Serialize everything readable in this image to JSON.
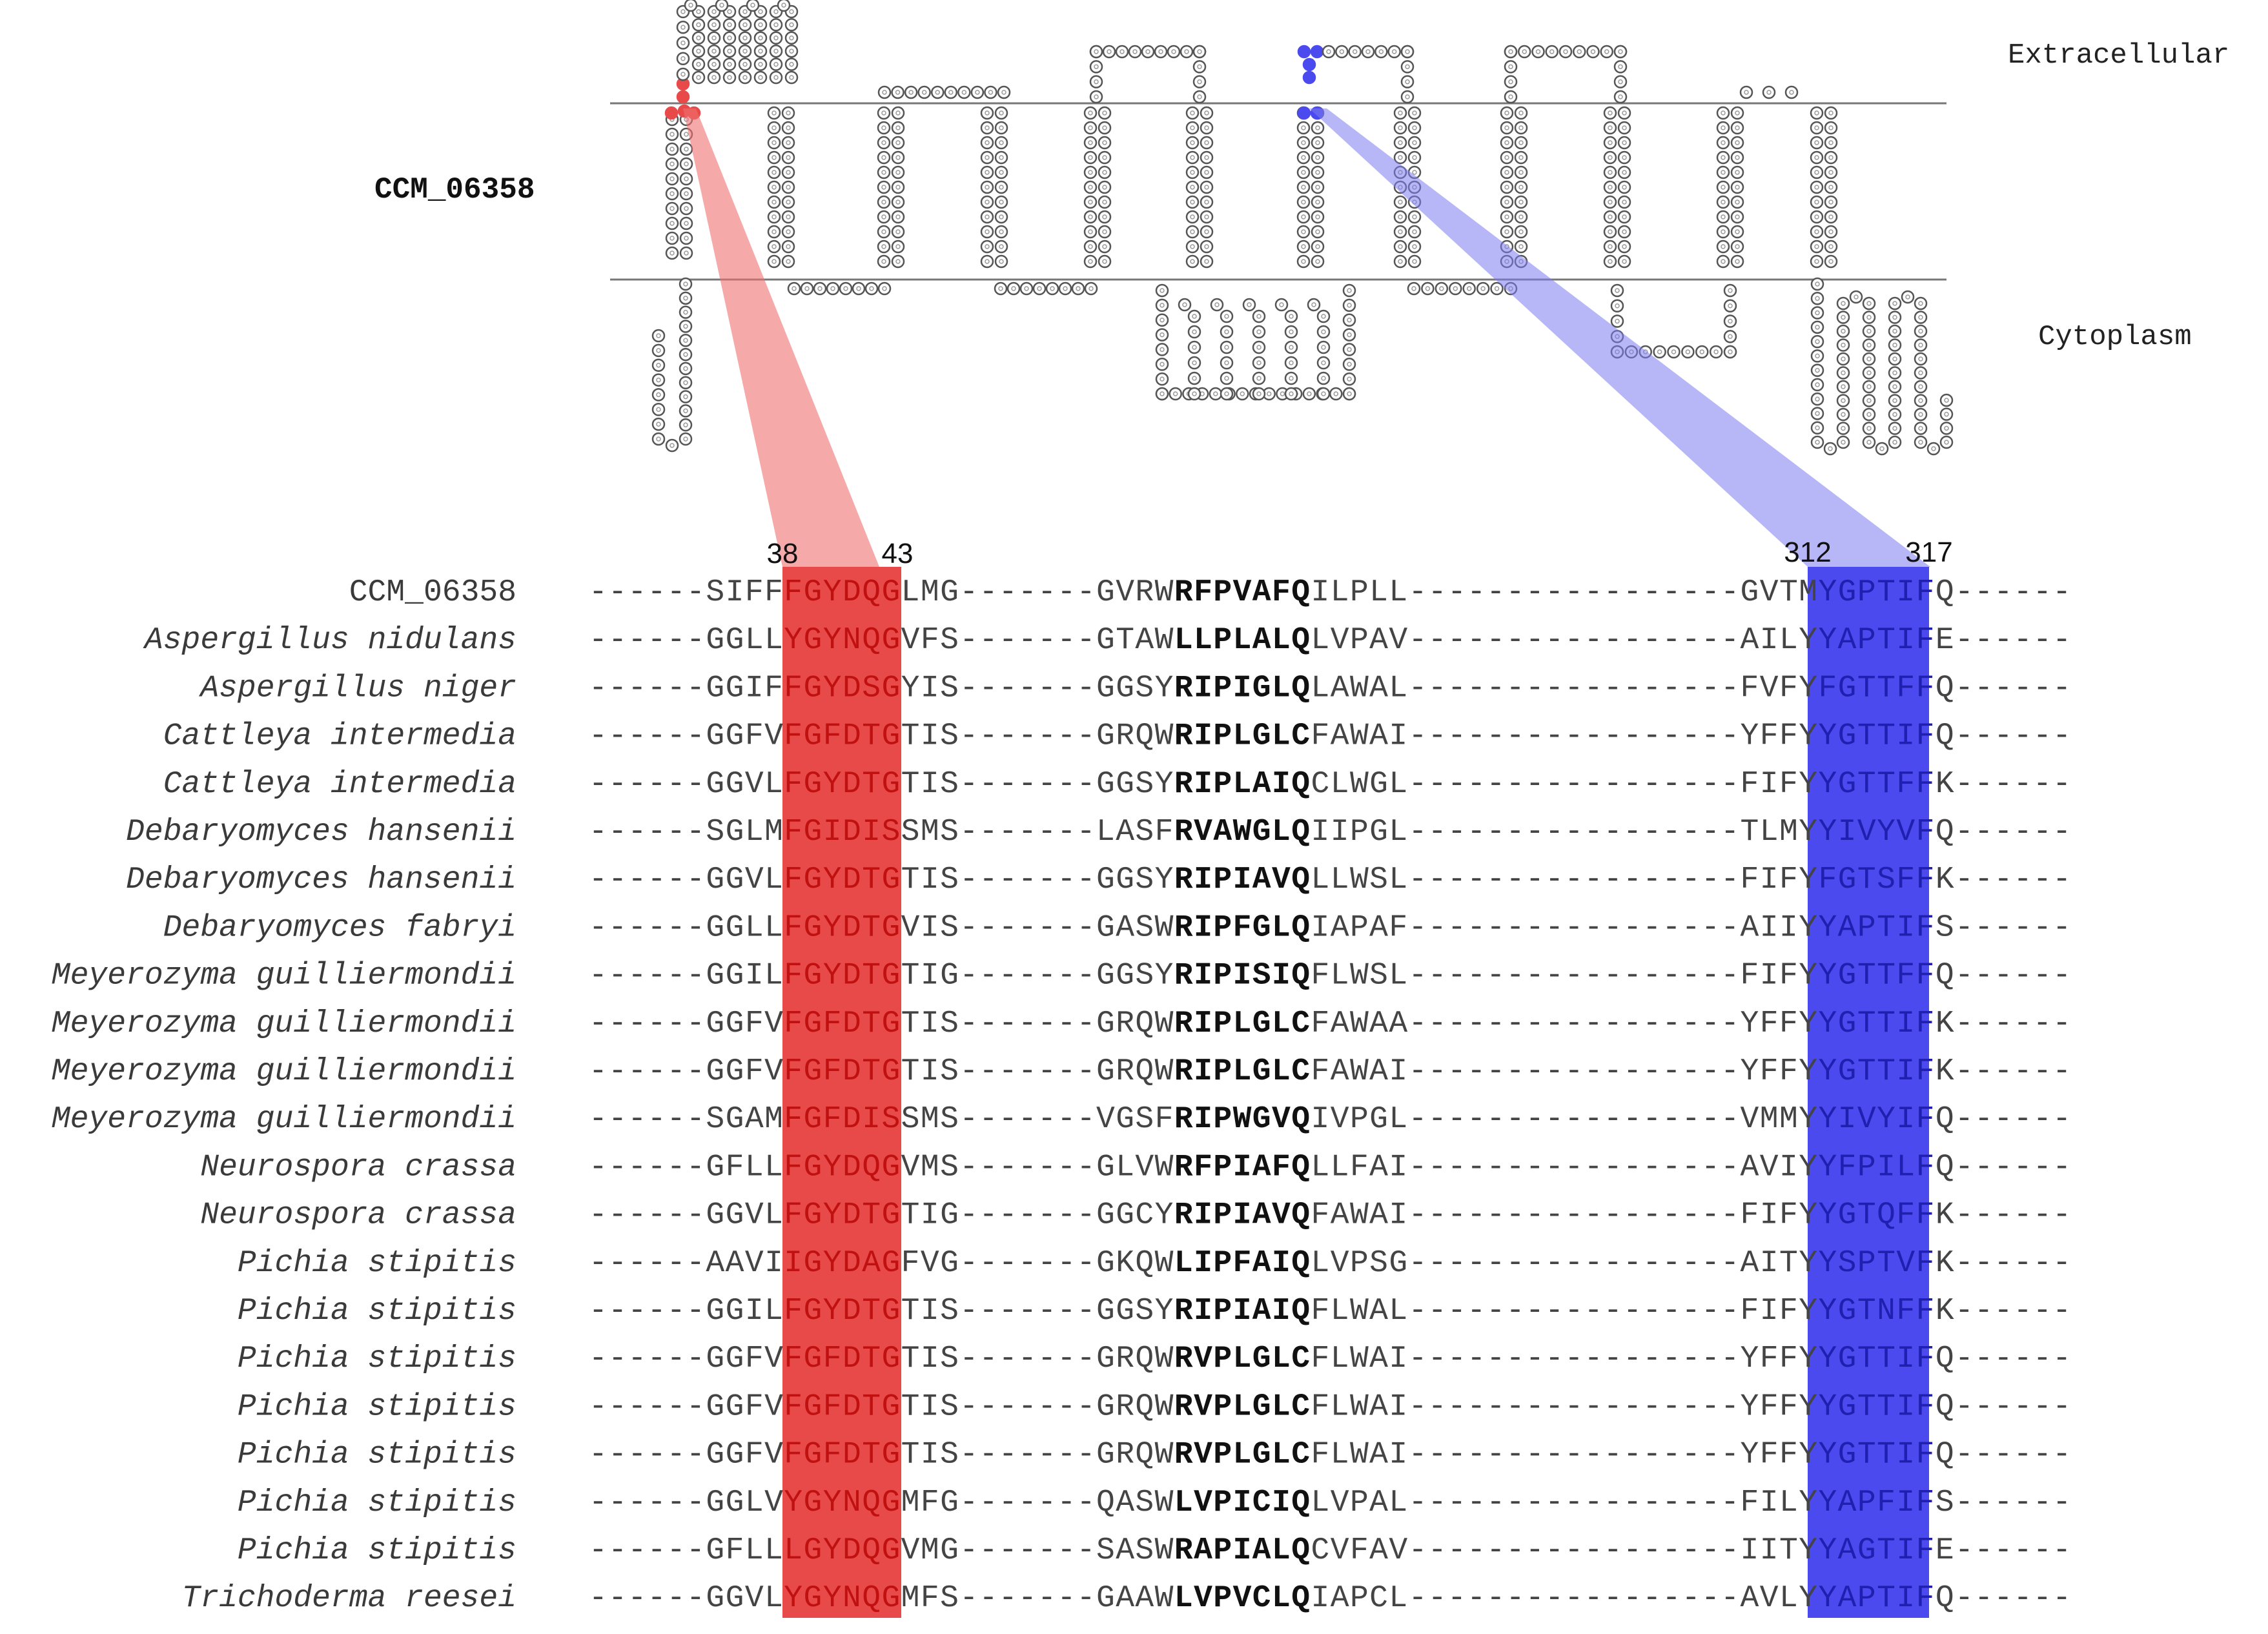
{
  "topology": {
    "protein_label": "CCM_06358",
    "extracellular_label": "Extracellular",
    "cytoplasm_label": "Cytoplasm",
    "colors": {
      "highlight_red": "#e84a4a",
      "highlight_blue": "#4a4aee",
      "membrane": "#777777"
    }
  },
  "positions": {
    "red_start": "38",
    "red_end": "43",
    "blue_start": "312",
    "blue_end": "317"
  },
  "alignment": {
    "rows": [
      {
        "name": "CCM_06358",
        "italic": false,
        "pre": "------SIFF",
        "m1": "FGYDQG",
        "mid1": "LMG-------GVRW",
        "bold": "RFPVAFQ",
        "mid2": "ILPLL-----------------GVTM",
        "m2": "YGPTIF",
        "post": "Q------"
      },
      {
        "name": "Aspergillus nidulans",
        "italic": true,
        "pre": "------GGLL",
        "m1": "YGYNQG",
        "mid1": "VFS-------GTAW",
        "bold": "LLPLALQ",
        "mid2": "LVPAV-----------------AILY",
        "m2": "YAPTIF",
        "post": "E------"
      },
      {
        "name": "Aspergillus niger",
        "italic": true,
        "pre": "------GGIF",
        "m1": "FGYDSG",
        "mid1": "YIS-------GGSY",
        "bold": "RIPIGLQ",
        "mid2": "LAWAL-----------------FVFY",
        "m2": "FGTTFF",
        "post": "Q------"
      },
      {
        "name": "Cattleya intermedia",
        "italic": true,
        "pre": "------GGFV",
        "m1": "FGFDTG",
        "mid1": "TIS-------GRQW",
        "bold": "RIPLGLC",
        "mid2": "FAWAI-----------------YFFY",
        "m2": "YGTTIF",
        "post": "Q------"
      },
      {
        "name": "Cattleya intermedia",
        "italic": true,
        "pre": "------GGVL",
        "m1": "FGYDTG",
        "mid1": "TIS-------GGSY",
        "bold": "RIPLAIQ",
        "mid2": "CLWGL-----------------FIFY",
        "m2": "YGTTFF",
        "post": "K------"
      },
      {
        "name": "Debaryomyces hansenii",
        "italic": true,
        "pre": "------SGLM",
        "m1": "FGIDIS",
        "mid1": "SMS-------LASF",
        "bold": "RVAWGLQ",
        "mid2": "IIPGL-----------------TLMY",
        "m2": "YIVYVF",
        "post": "Q------"
      },
      {
        "name": "Debaryomyces hansenii",
        "italic": true,
        "pre": "------GGVL",
        "m1": "FGYDTG",
        "mid1": "TIS-------GGSY",
        "bold": "RIPIAVQ",
        "mid2": "LLWSL-----------------FIFY",
        "m2": "FGTSFF",
        "post": "K------"
      },
      {
        "name": "Debaryomyces fabryi",
        "italic": true,
        "pre": "------GGLL",
        "m1": "FGYDTG",
        "mid1": "VIS-------GASW",
        "bold": "RIPFGLQ",
        "mid2": "IAPAF-----------------AIIY",
        "m2": "YAPTIF",
        "post": "S------"
      },
      {
        "name": "Meyerozyma guilliermondii",
        "italic": true,
        "pre": "------GGIL",
        "m1": "FGYDTG",
        "mid1": "TIG-------GGSY",
        "bold": "RIPISIQ",
        "mid2": "FLWSL-----------------FIFY",
        "m2": "YGTTFF",
        "post": "Q------"
      },
      {
        "name": "Meyerozyma guilliermondii",
        "italic": true,
        "pre": "------GGFV",
        "m1": "FGFDTG",
        "mid1": "TIS-------GRQW",
        "bold": "RIPLGLC",
        "mid2": "FAWAA-----------------YFFY",
        "m2": "YGTTIF",
        "post": "K------"
      },
      {
        "name": "Meyerozyma guilliermondii",
        "italic": true,
        "pre": "------GGFV",
        "m1": "FGFDTG",
        "mid1": "TIS-------GRQW",
        "bold": "RIPLGLC",
        "mid2": "FAWAI-----------------YFFY",
        "m2": "YGTTIF",
        "post": "K------"
      },
      {
        "name": "Meyerozyma guilliermondii",
        "italic": true,
        "pre": "------SGAM",
        "m1": "FGFDIS",
        "mid1": "SMS-------VGSF",
        "bold": "RIPWGVQ",
        "mid2": "IVPGL-----------------VMMY",
        "m2": "YIVYIF",
        "post": "Q------"
      },
      {
        "name": "Neurospora crassa",
        "italic": true,
        "pre": "------GFLL",
        "m1": "FGYDQG",
        "mid1": "VMS-------GLVW",
        "bold": "RFPIAFQ",
        "mid2": "LLFAI-----------------AVIY",
        "m2": "YFPILF",
        "post": "Q------"
      },
      {
        "name": "Neurospora crassa",
        "italic": true,
        "pre": "------GGVL",
        "m1": "FGYDTG",
        "mid1": "TIG-------GGCY",
        "bold": "RIPIAVQ",
        "mid2": "FAWAI-----------------FIFY",
        "m2": "YGTQFF",
        "post": "K------"
      },
      {
        "name": "Pichia stipitis",
        "italic": true,
        "pre": "------AAVI",
        "m1": "IGYDAG",
        "mid1": "FVG-------GKQW",
        "bold": "LIPFAIQ",
        "mid2": "LVPSG-----------------AITY",
        "m2": "YSPTVF",
        "post": "K------"
      },
      {
        "name": "Pichia stipitis",
        "italic": true,
        "pre": "------GGIL",
        "m1": "FGYDTG",
        "mid1": "TIS-------GGSY",
        "bold": "RIPIAIQ",
        "mid2": "FLWAL-----------------FIFY",
        "m2": "YGTNFF",
        "post": "K------"
      },
      {
        "name": "Pichia stipitis",
        "italic": true,
        "pre": "------GGFV",
        "m1": "FGFDTG",
        "mid1": "TIS-------GRQW",
        "bold": "RVPLGLC",
        "mid2": "FLWAI-----------------YFFY",
        "m2": "YGTTIF",
        "post": "Q------"
      },
      {
        "name": "Pichia stipitis",
        "italic": true,
        "pre": "------GGFV",
        "m1": "FGFDTG",
        "mid1": "TIS-------GRQW",
        "bold": "RVPLGLC",
        "mid2": "FLWAI-----------------YFFY",
        "m2": "YGTTIF",
        "post": "Q------"
      },
      {
        "name": "Pichia stipitis",
        "italic": true,
        "pre": "------GGFV",
        "m1": "FGFDTG",
        "mid1": "TIS-------GRQW",
        "bold": "RVPLGLC",
        "mid2": "FLWAI-----------------YFFY",
        "m2": "YGTTIF",
        "post": "Q------"
      },
      {
        "name": "Pichia stipitis",
        "italic": true,
        "pre": "------GGLV",
        "m1": "YGYNQG",
        "mid1": "MFG-------QASW",
        "bold": "LVPICIQ",
        "mid2": "LVPAL-----------------FILY",
        "m2": "YAPFIF",
        "post": "S------"
      },
      {
        "name": "Pichia stipitis",
        "italic": true,
        "pre": "------GFLL",
        "m1": "LGYDQG",
        "mid1": "VMG-------SASW",
        "bold": "RAPIALQ",
        "mid2": "CVFAV-----------------IITY",
        "m2": "YAGTIF",
        "post": "E------"
      },
      {
        "name": "Trichoderma reesei",
        "italic": true,
        "pre": "------GGVL",
        "m1": "YGYNQG",
        "mid1": "MFS-------GAAW",
        "bold": "LVPVCLQ",
        "mid2": "IAPCL-----------------AVLY",
        "m2": "YAPTIF",
        "post": "Q------"
      }
    ]
  }
}
